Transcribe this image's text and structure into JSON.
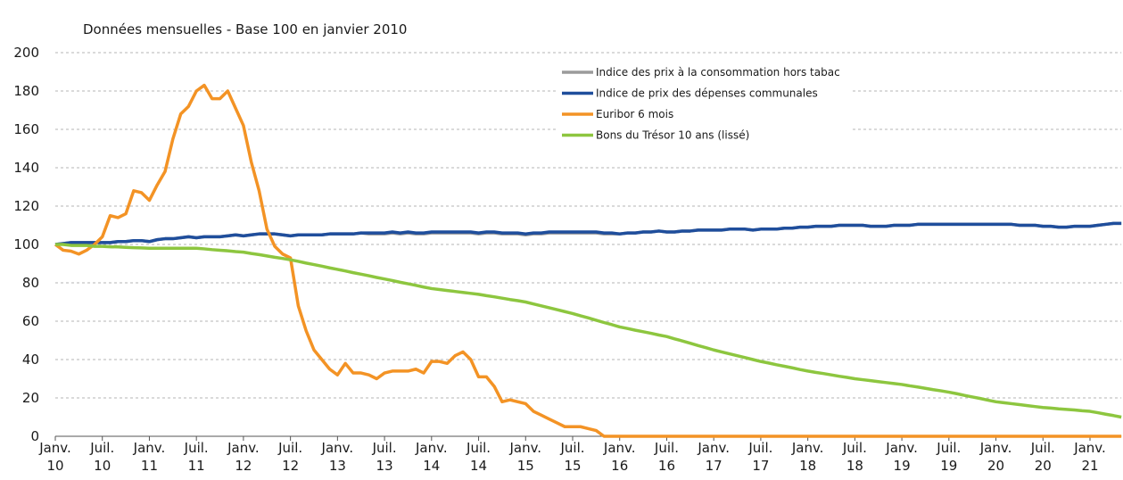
{
  "chart_data": {
    "type": "line",
    "title": "Données mensuelles - Base 100 en janvier 2010",
    "categories": [
      "Janv. 10",
      null,
      null,
      null,
      null,
      null,
      "Juil. 10",
      null,
      null,
      null,
      null,
      null,
      "Janv. 11",
      null,
      null,
      null,
      null,
      null,
      "Juil. 11",
      null,
      null,
      null,
      null,
      null,
      "Janv. 12",
      null,
      null,
      null,
      null,
      null,
      "Juil. 12",
      null,
      null,
      null,
      null,
      null,
      "Janv. 13",
      null,
      null,
      null,
      null,
      null,
      "Juil. 13",
      null,
      null,
      null,
      null,
      null,
      "Janv. 14",
      null,
      null,
      null,
      null,
      null,
      "Juil. 14",
      null,
      null,
      null,
      null,
      null,
      "Janv. 15",
      null,
      null,
      null,
      null,
      null,
      "Juil. 15",
      null,
      null,
      null,
      null,
      null,
      "Janv. 16",
      null,
      null,
      null,
      null,
      null,
      "Juil. 16",
      null,
      null,
      null,
      null,
      null,
      "Janv. 17",
      null,
      null,
      null,
      null,
      null,
      "Juil. 17",
      null,
      null,
      null,
      null,
      null,
      "Janv. 18",
      null,
      null,
      null,
      null,
      null,
      "Juil. 18",
      null,
      null,
      null,
      null,
      null,
      "Janv. 19",
      null,
      null,
      null,
      null,
      null,
      "Juil. 19",
      null,
      null,
      null,
      null,
      null,
      "Janv. 20",
      null,
      null,
      null,
      null,
      null,
      "Juil. 20",
      null,
      null,
      null,
      null,
      null,
      "Janv. 21",
      null,
      null,
      null,
      null
    ],
    "ylim": [
      0,
      200
    ],
    "yticks": [
      0,
      20,
      40,
      60,
      80,
      100,
      120,
      140,
      160,
      180,
      200
    ],
    "grid": true,
    "series": [
      {
        "name": "Indice des prix à la consommation hors tabac",
        "color": "#9b9b9b",
        "values": [
          100,
          100.5,
          101,
          101,
          101,
          101,
          101,
          101,
          101.5,
          101.5,
          102,
          102,
          101.5,
          102.5,
          103,
          103,
          103.5,
          104,
          103.5,
          104,
          104,
          104,
          104.5,
          105,
          104.5,
          105,
          105.5,
          105.5,
          105.5,
          105,
          104.5,
          105,
          105,
          105,
          105,
          105.5,
          105.5,
          105.5,
          105.5,
          106,
          105.5,
          105.5,
          105.5,
          106,
          105.5,
          106,
          105.5,
          105.5,
          106,
          106,
          106,
          106,
          106,
          106,
          105.5,
          106,
          106,
          105.5,
          105.5,
          105.5,
          105,
          105.5,
          105.5,
          106,
          106,
          106,
          106,
          106,
          106,
          106,
          105.5,
          105.5,
          105.5,
          106,
          106,
          106.5,
          106.5,
          107,
          106.5,
          106.5,
          107,
          107,
          107.5,
          107.5,
          107.5,
          107.5,
          108,
          108,
          108,
          107.5,
          108,
          108,
          108,
          108.5,
          108.5,
          109,
          109,
          109.5,
          109.5,
          109.5,
          110,
          110,
          110,
          110,
          109.5,
          109.5,
          109.5,
          110,
          110,
          110,
          110.5,
          110.5,
          110.5,
          110.5,
          110.5,
          110.5,
          110.5,
          110.5,
          110.5,
          110.5,
          110.5,
          110.5,
          110.5,
          110,
          110,
          110,
          109.5,
          109.5,
          109,
          109,
          109.5,
          109.5,
          109.5,
          110,
          110.5,
          111,
          111
        ]
      },
      {
        "name": "Indice de prix des dépenses communales",
        "color": "#1f4e9c",
        "values": [
          100,
          100.5,
          101,
          101,
          101,
          101,
          101,
          101,
          101.5,
          101.5,
          102,
          102,
          101.5,
          102.5,
          103,
          103,
          103.5,
          104,
          103.5,
          104,
          104,
          104,
          104.5,
          105,
          104.5,
          105,
          105.5,
          105.5,
          105.5,
          105,
          104.5,
          105,
          105,
          105,
          105,
          105.5,
          105.5,
          105.5,
          105.5,
          106,
          106,
          106,
          106,
          106.5,
          106,
          106.5,
          106,
          106,
          106.5,
          106.5,
          106.5,
          106.5,
          106.5,
          106.5,
          106,
          106.5,
          106.5,
          106,
          106,
          106,
          105.5,
          106,
          106,
          106.5,
          106.5,
          106.5,
          106.5,
          106.5,
          106.5,
          106.5,
          106,
          106,
          105.5,
          106,
          106,
          106.5,
          106.5,
          107,
          106.5,
          106.5,
          107,
          107,
          107.5,
          107.5,
          107.5,
          107.5,
          108,
          108,
          108,
          107.5,
          108,
          108,
          108,
          108.5,
          108.5,
          109,
          109,
          109.5,
          109.5,
          109.5,
          110,
          110,
          110,
          110,
          109.5,
          109.5,
          109.5,
          110,
          110,
          110,
          110.5,
          110.5,
          110.5,
          110.5,
          110.5,
          110.5,
          110.5,
          110.5,
          110.5,
          110.5,
          110.5,
          110.5,
          110.5,
          110,
          110,
          110,
          109.5,
          109.5,
          109,
          109,
          109.5,
          109.5,
          109.5,
          110,
          110.5,
          111,
          111
        ]
      },
      {
        "name": "Euribor 6 mois",
        "color": "#f39325",
        "values": [
          100,
          97,
          96.5,
          95,
          97,
          100,
          104,
          115,
          114,
          116,
          128,
          127,
          123,
          131,
          138,
          155,
          168,
          172,
          180,
          183,
          176,
          176,
          180,
          171,
          162,
          143,
          128,
          108,
          99,
          95,
          93,
          68,
          55,
          45,
          40,
          35,
          32,
          38,
          33,
          33,
          32,
          30,
          33,
          34,
          34,
          34,
          35,
          33,
          39,
          39,
          38,
          42,
          44,
          40,
          31,
          31,
          26,
          18,
          19,
          18,
          17,
          13,
          11,
          9,
          7,
          5,
          5,
          5,
          4,
          3,
          0,
          0,
          0,
          0,
          0,
          0,
          0,
          0,
          0,
          0,
          0,
          0,
          0,
          0,
          0,
          0,
          0,
          0,
          0,
          0,
          0,
          0,
          0,
          0,
          0,
          0,
          0,
          0,
          0,
          0,
          0,
          0,
          0,
          0,
          0,
          0,
          0,
          0,
          0,
          0,
          0,
          0,
          0,
          0,
          0,
          0,
          0,
          0,
          0,
          0,
          0,
          0,
          0,
          0,
          0,
          0,
          0,
          0,
          0,
          0,
          0,
          0,
          0,
          0,
          0,
          0,
          0
        ]
      },
      {
        "name": "Bons du Trésor 10 ans (lissé)",
        "color": "#8dc63f",
        "values": [
          100,
          100,
          99.5,
          99.5,
          99.5,
          99,
          99,
          98.8,
          98.7,
          98.5,
          98.3,
          98.2,
          98,
          98,
          98,
          98,
          98,
          98,
          98,
          97.7,
          97.3,
          97,
          96.7,
          96.3,
          96,
          95.3,
          94.7,
          94,
          93.3,
          92.7,
          92,
          91.2,
          90.3,
          89.5,
          88.7,
          87.8,
          87,
          86.2,
          85.3,
          84.5,
          83.7,
          82.8,
          82,
          81.2,
          80.3,
          79.5,
          78.7,
          77.8,
          77,
          76.5,
          76,
          75.5,
          75,
          74.5,
          74,
          73.3,
          72.7,
          72,
          71.3,
          70.7,
          70,
          69,
          68,
          67,
          66,
          65,
          64,
          62.8,
          61.7,
          60.5,
          59.3,
          58.2,
          57,
          56.2,
          55.3,
          54.5,
          53.7,
          52.8,
          52,
          50.8,
          49.7,
          48.5,
          47.3,
          46.2,
          45,
          44,
          43,
          42,
          41,
          40,
          39,
          38.2,
          37.3,
          36.5,
          35.7,
          34.8,
          34,
          33.3,
          32.7,
          32,
          31.3,
          30.7,
          30,
          29.5,
          29,
          28.5,
          28,
          27.5,
          27,
          26.3,
          25.7,
          25,
          24.3,
          23.7,
          23,
          22.2,
          21.3,
          20.5,
          19.7,
          18.8,
          18,
          17.5,
          17,
          16.5,
          16,
          15.5,
          15,
          14.7,
          14.3,
          14,
          13.7,
          13.3,
          13,
          12.3,
          11.5,
          10.8,
          10
        ]
      }
    ]
  }
}
